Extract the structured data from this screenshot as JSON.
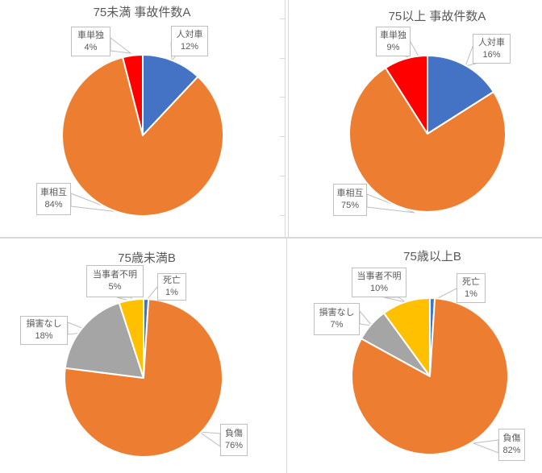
{
  "page": {
    "background": "#FFFFFF",
    "description": "Four pie charts comparing traffic accident statistics for drivers under 75 vs 75 and older"
  },
  "colors": {
    "blue": "#4472C4",
    "orange": "#ED7D31",
    "red": "#FF0000",
    "gray": "#A5A5A5",
    "yellow": "#FFC000",
    "slice_border": "#FFFFFF",
    "divider": "#D9D9D9",
    "callout_border": "#BFBFBF",
    "text": "#595959"
  },
  "chart_data": [
    {
      "type": "pie",
      "title": "75未満 事故件数A",
      "start_angle_deg": 0,
      "direction": "clockwise",
      "legend": "none",
      "label_style": "callout with category name and percent",
      "slices": [
        {
          "label": "人対車",
          "pct": 12,
          "pct_label": "12%",
          "color": "#4472C4"
        },
        {
          "label": "車相互",
          "pct": 84,
          "pct_label": "84%",
          "color": "#ED7D31"
        },
        {
          "label": "車単独",
          "pct": 4,
          "pct_label": "4%",
          "color": "#FF0000"
        }
      ]
    },
    {
      "type": "pie",
      "title": "75以上 事故件数A",
      "start_angle_deg": 0,
      "direction": "clockwise",
      "legend": "none",
      "label_style": "callout with category name and percent",
      "slices": [
        {
          "label": "人対車",
          "pct": 16,
          "pct_label": "16%",
          "color": "#4472C4"
        },
        {
          "label": "車相互",
          "pct": 75,
          "pct_label": "75%",
          "color": "#ED7D31"
        },
        {
          "label": "車単独",
          "pct": 9,
          "pct_label": "9%",
          "color": "#FF0000"
        }
      ]
    },
    {
      "type": "pie",
      "title": "75歳未満B",
      "start_angle_deg": 0,
      "direction": "clockwise",
      "legend": "none",
      "label_style": "callout with category name and percent",
      "slices": [
        {
          "label": "死亡",
          "pct": 1,
          "pct_label": "1%",
          "color": "#4472C4"
        },
        {
          "label": "負傷",
          "pct": 76,
          "pct_label": "76%",
          "color": "#ED7D31"
        },
        {
          "label": "損害なし",
          "pct": 18,
          "pct_label": "18%",
          "color": "#A5A5A5"
        },
        {
          "label": "当事者不明",
          "pct": 5,
          "pct_label": "5%",
          "color": "#FFC000"
        }
      ]
    },
    {
      "type": "pie",
      "title": "75歳以上B",
      "start_angle_deg": 0,
      "direction": "clockwise",
      "legend": "none",
      "label_style": "callout with category name and percent",
      "slices": [
        {
          "label": "死亡",
          "pct": 1,
          "pct_label": "1%",
          "color": "#4472C4"
        },
        {
          "label": "負傷",
          "pct": 82,
          "pct_label": "82%",
          "color": "#ED7D31"
        },
        {
          "label": "損害なし",
          "pct": 7,
          "pct_label": "7%",
          "color": "#A5A5A5"
        },
        {
          "label": "当事者不明",
          "pct": 10,
          "pct_label": "10%",
          "color": "#FFC000"
        }
      ]
    }
  ]
}
